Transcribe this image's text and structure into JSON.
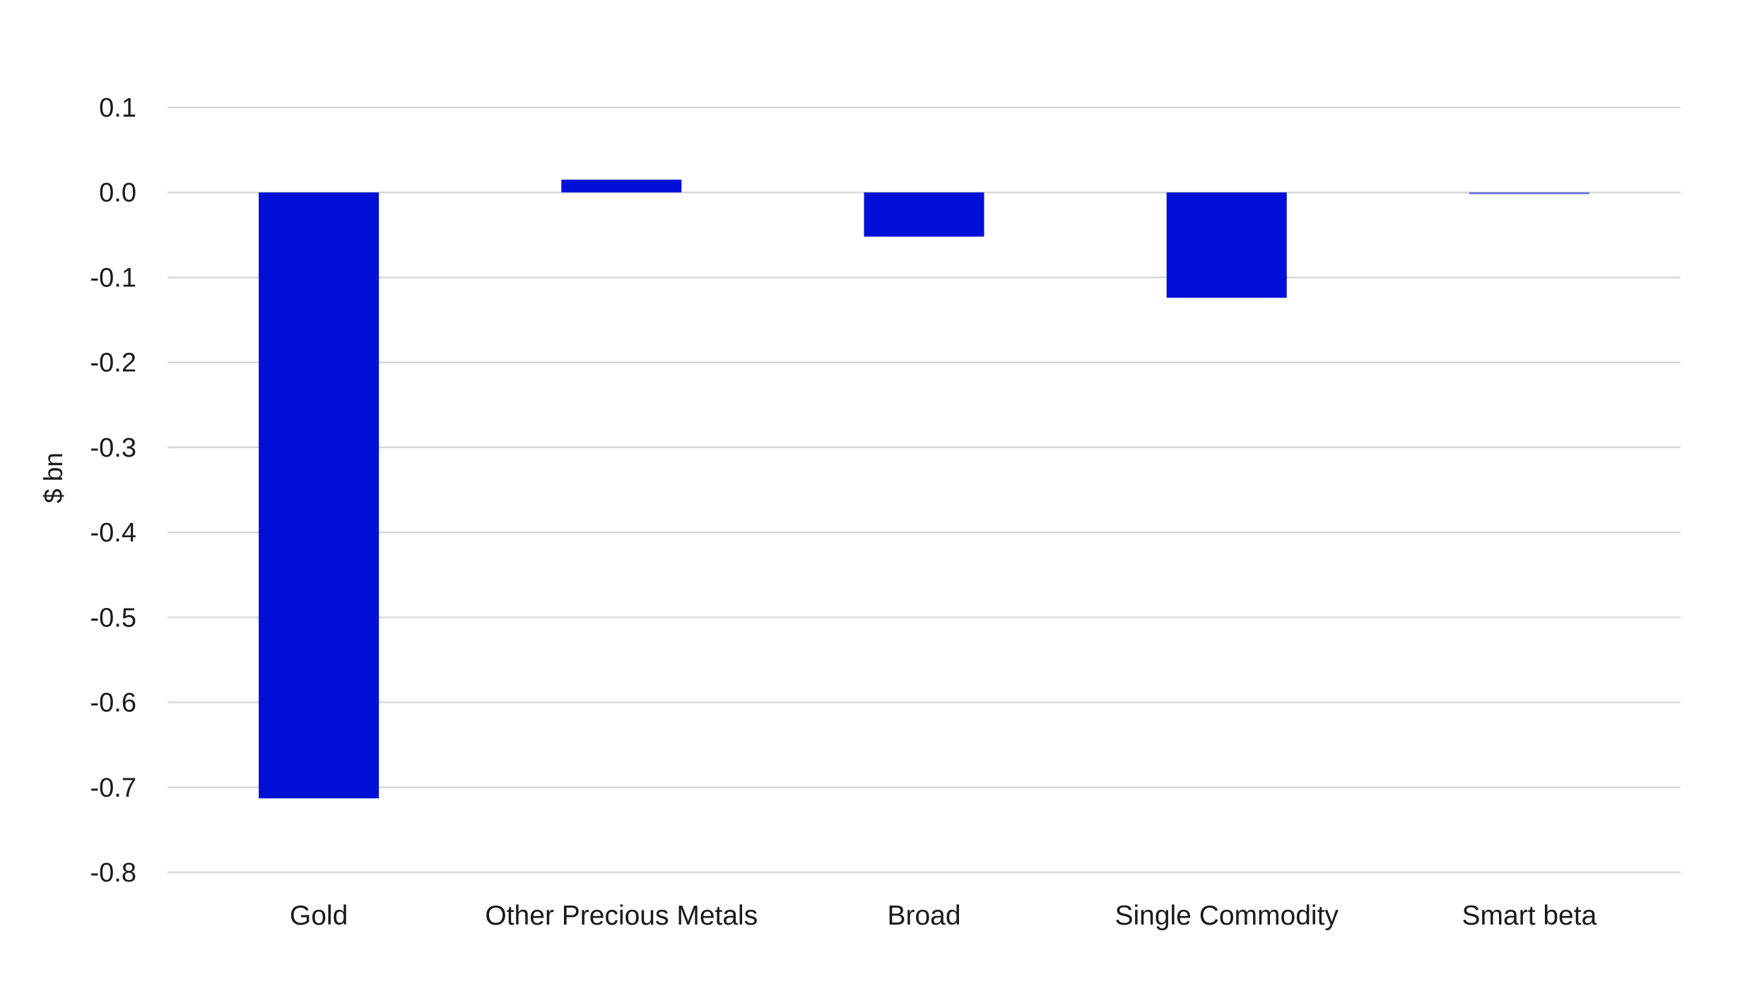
{
  "chart_data": {
    "type": "bar",
    "title": "",
    "xlabel": "",
    "ylabel": "$ bn",
    "categories": [
      "Gold",
      "Other Precious Metals",
      "Broad",
      "Single Commodity",
      "Smart beta"
    ],
    "values": [
      -0.713,
      0.015,
      -0.052,
      -0.124,
      -0.002
    ],
    "ylim": [
      -0.8,
      0.1
    ],
    "yticks": [
      0.1,
      0.0,
      -0.1,
      -0.2,
      -0.3,
      -0.4,
      -0.5,
      -0.6,
      -0.7,
      -0.8
    ],
    "ytick_labels": [
      "0.1",
      "0.0",
      "-0.1",
      "-0.2",
      "-0.3",
      "-0.4",
      "-0.5",
      "-0.6",
      "-0.7",
      "-0.8"
    ],
    "grid": true,
    "legend": "none",
    "bar_color": "#0010D6"
  }
}
